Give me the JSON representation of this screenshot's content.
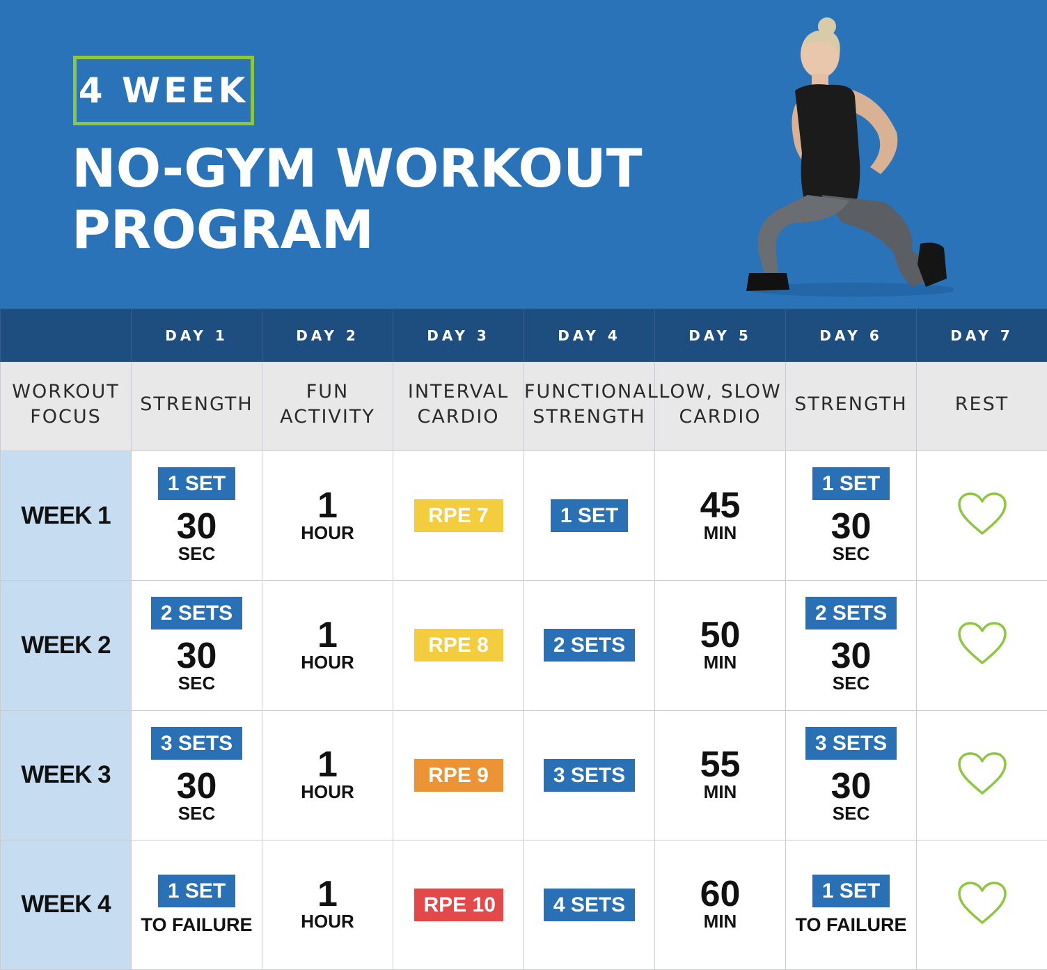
{
  "header": {
    "badge": "4 WEEK",
    "title_line1": "NO-GYM WORKOUT",
    "title_line2": "PROGRAM"
  },
  "colors": {
    "hero_blue": "#2a73b8",
    "header_navy": "#1e4d80",
    "badge_green": "#8ec63f",
    "tag_blue": "#2a70b5",
    "rpe_yellow": "#f3cd3e",
    "rpe_orange": "#ec9336",
    "rpe_red": "#e4494a",
    "week_label_bg": "#c6ddf1",
    "heart_green": "#8ec63f"
  },
  "days": [
    "DAY 1",
    "DAY 2",
    "DAY 3",
    "DAY 4",
    "DAY 5",
    "DAY 6",
    "DAY 7"
  ],
  "focus": {
    "label": [
      "WORKOUT",
      "FOCUS"
    ],
    "items": [
      [
        "STRENGTH"
      ],
      [
        "FUN",
        "ACTIVITY"
      ],
      [
        "INTERVAL",
        "CARDIO"
      ],
      [
        "FUNCTIONAL",
        "STRENGTH"
      ],
      [
        "LOW, SLOW",
        "CARDIO"
      ],
      [
        "STRENGTH"
      ],
      [
        "REST"
      ]
    ]
  },
  "weeks": [
    {
      "label": "WEEK 1",
      "strength": {
        "tag": "1 SET",
        "value": "30",
        "unit": "SEC"
      },
      "fun": {
        "value": "1",
        "unit": "HOUR"
      },
      "rpe": {
        "label": "RPE 7",
        "color": "yellow"
      },
      "functional": {
        "tag": "1 SET"
      },
      "cardio": {
        "value": "45",
        "unit": "MIN"
      },
      "strength2": {
        "tag": "1 SET",
        "value": "30",
        "unit": "SEC"
      },
      "rest_icon": "heart-icon"
    },
    {
      "label": "WEEK 2",
      "strength": {
        "tag": "2 SETS",
        "value": "30",
        "unit": "SEC"
      },
      "fun": {
        "value": "1",
        "unit": "HOUR"
      },
      "rpe": {
        "label": "RPE 8",
        "color": "yellow"
      },
      "functional": {
        "tag": "2 SETS"
      },
      "cardio": {
        "value": "50",
        "unit": "MIN"
      },
      "strength2": {
        "tag": "2 SETS",
        "value": "30",
        "unit": "SEC"
      },
      "rest_icon": "heart-icon"
    },
    {
      "label": "WEEK 3",
      "strength": {
        "tag": "3 SETS",
        "value": "30",
        "unit": "SEC"
      },
      "fun": {
        "value": "1",
        "unit": "HOUR"
      },
      "rpe": {
        "label": "RPE 9",
        "color": "orange"
      },
      "functional": {
        "tag": "3 SETS"
      },
      "cardio": {
        "value": "55",
        "unit": "MIN"
      },
      "strength2": {
        "tag": "3 SETS",
        "value": "30",
        "unit": "SEC"
      },
      "rest_icon": "heart-icon"
    },
    {
      "label": "WEEK 4",
      "strength": {
        "tag": "1 SET",
        "unit": "TO FAILURE"
      },
      "fun": {
        "value": "1",
        "unit": "HOUR"
      },
      "rpe": {
        "label": "RPE 10",
        "color": "red"
      },
      "functional": {
        "tag": "4 SETS"
      },
      "cardio": {
        "value": "60",
        "unit": "MIN"
      },
      "strength2": {
        "tag": "1 SET",
        "unit": "TO FAILURE"
      },
      "rest_icon": "heart-icon"
    }
  ]
}
